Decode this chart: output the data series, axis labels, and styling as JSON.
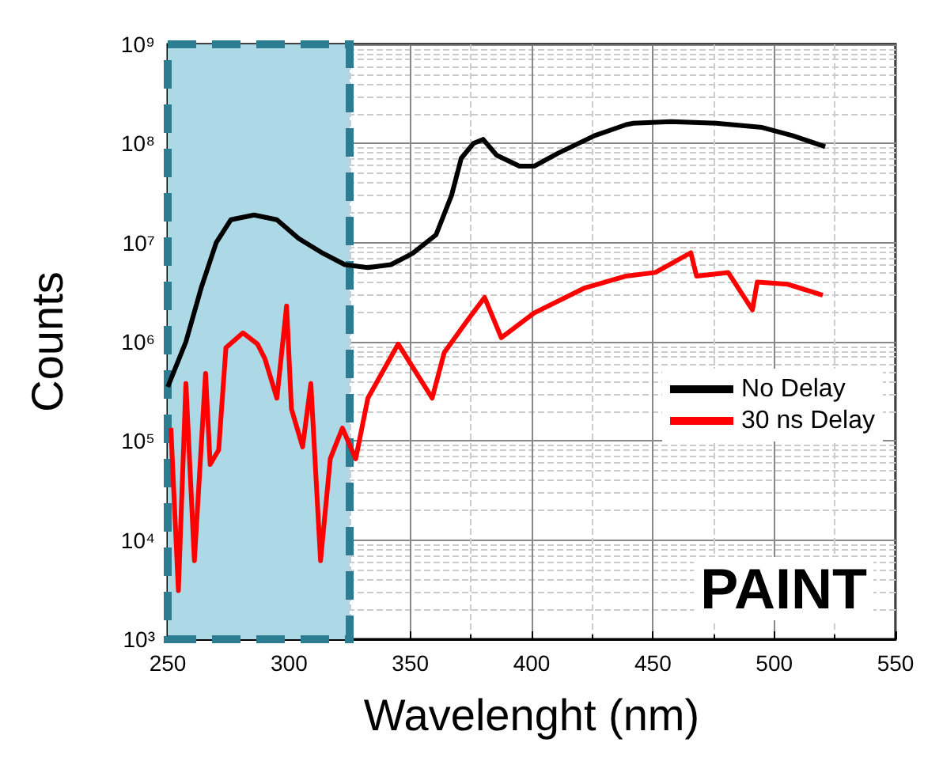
{
  "chart_data": {
    "type": "line",
    "xlabel": "Wavelenght (nm)",
    "ylabel": "Counts",
    "log": "y",
    "grid": true,
    "legend": "right",
    "line_style": "solid",
    "marker": "none",
    "xlim": [
      250,
      550
    ],
    "xticks": [
      250,
      300,
      350,
      400,
      450,
      500,
      550
    ],
    "ylim": [
      1000,
      1000000000
    ],
    "yticks": [
      {
        "value": 1000,
        "label": "10³"
      },
      {
        "value": 10000,
        "label": "10⁴"
      },
      {
        "value": 100000,
        "label": "10⁵"
      },
      {
        "value": 1000000,
        "label": "10⁶"
      },
      {
        "value": 10000000,
        "label": "10⁷"
      },
      {
        "value": 100000000,
        "label": "10⁸"
      },
      {
        "value": 1000000000,
        "label": "10⁹"
      }
    ],
    "bands": [
      {
        "axis": "x",
        "from": 250,
        "to": 325,
        "color": "#add8e6"
      }
    ],
    "annotations": [
      "PAINT"
    ],
    "series": [
      {
        "name": "No Delay",
        "color": "#000000",
        "x": [
          250,
          257.5,
          263.8,
          270,
          276,
          285.6,
          295,
          304,
          314,
          323,
          332.5,
          342,
          351,
          360.6,
          367,
          371,
          376,
          380,
          385.6,
          395,
          401,
          410.6,
          426,
          439,
          442,
          457.5,
          476,
          495,
          507.5,
          521
        ],
        "values": [
          350000,
          1000000,
          3500000,
          10000000,
          17000000,
          19000000,
          17000000,
          11000000,
          7800000,
          6000000,
          5600000,
          6000000,
          7800000,
          12000000,
          30000000,
          71000000,
          100000000,
          110000000,
          76000000,
          59000000,
          59000000,
          79000000,
          120000000,
          155000000,
          160000000,
          166000000,
          160000000,
          145000000,
          120000000,
          93000000
        ]
      },
      {
        "name": "30 ns Delay",
        "color": "#ff0000",
        "x": [
          251.3,
          254.4,
          257.5,
          261,
          265.6,
          267.5,
          271,
          274,
          281,
          287,
          290,
          295,
          299,
          301,
          305.6,
          309,
          313,
          317,
          322,
          327.5,
          332.5,
          345,
          359,
          364,
          374,
          380.6,
          387.5,
          401,
          422,
          439,
          451,
          465.6,
          468,
          481,
          491,
          493,
          505.6,
          520
        ],
        "values": [
          135000,
          3100,
          380000,
          6200,
          480000,
          58000,
          81000,
          870000,
          1230000,
          950000,
          680000,
          270000,
          2300000,
          210000,
          87000,
          380000,
          6200,
          66000,
          135000,
          66000,
          270000,
          950000,
          270000,
          780000,
          1700000,
          2800000,
          1100000,
          1950000,
          3500000,
          4600000,
          5000000,
          7900000,
          4600000,
          5000000,
          2100000,
          4000000,
          3800000,
          2950000
        ]
      }
    ]
  }
}
